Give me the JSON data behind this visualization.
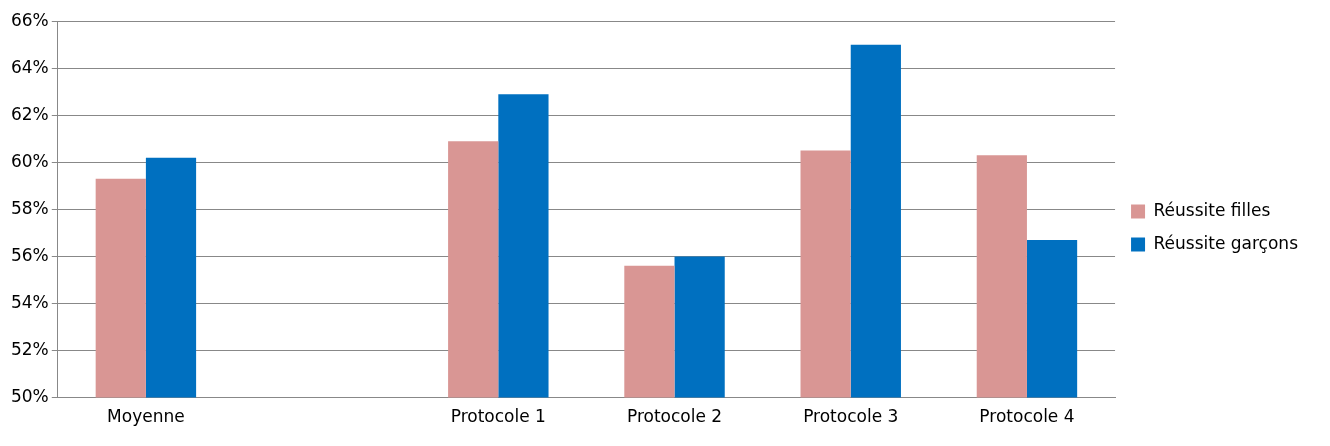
{
  "chart_data": {
    "type": "bar",
    "categories": [
      "Moyenne",
      null,
      "Protocole 1",
      "Protocole 2",
      "Protocole 3",
      "Protocole 4"
    ],
    "series": [
      {
        "name": "Réussite filles",
        "color": "#d99694",
        "values": [
          59.3,
          null,
          60.9,
          55.6,
          60.5,
          60.3
        ]
      },
      {
        "name": "Réussite garçons",
        "color": "#0070c0",
        "values": [
          60.2,
          null,
          62.9,
          56.0,
          65.0,
          56.7
        ]
      }
    ],
    "ylim": [
      50,
      66
    ],
    "yticks": [
      {
        "value": 50,
        "label": "50%"
      },
      {
        "value": 52,
        "label": "52%"
      },
      {
        "value": 54,
        "label": "54%"
      },
      {
        "value": 56,
        "label": "56%"
      },
      {
        "value": 58,
        "label": "58%"
      },
      {
        "value": 60,
        "label": "60%"
      },
      {
        "value": 62,
        "label": "62%"
      },
      {
        "value": 64,
        "label": "64%"
      },
      {
        "value": 66,
        "label": "66%"
      }
    ],
    "grid": "y",
    "legend": "right"
  }
}
